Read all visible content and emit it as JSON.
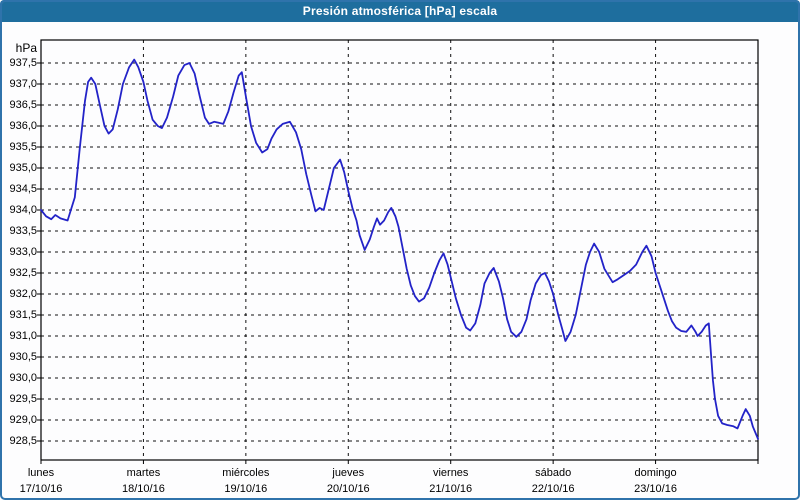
{
  "window": {
    "title": "Presión atmosférica [hPa] escala"
  },
  "colors": {
    "titlebar": "#1e6e9e",
    "panel_border": "#2f73ab",
    "line": "#2323c8",
    "grid": "#111111",
    "axis": "#000000",
    "text": "#000000",
    "plot_background": "#ffffff"
  },
  "chart_data": {
    "type": "line",
    "title": "Presión atmosférica [hPa] escala",
    "y_unit_label": "hPa",
    "xlabel": "",
    "ylabel": "hPa",
    "ylim": [
      928.5,
      937.5
    ],
    "y_tick_step": 0.5,
    "grid": true,
    "legend": false,
    "y_ticks": [
      "937,5",
      "937,0",
      "936,5",
      "936,0",
      "935,5",
      "935,0",
      "934,5",
      "934,0",
      "933,5",
      "933,0",
      "932,5",
      "932,0",
      "931,5",
      "931,0",
      "930,5",
      "930,0",
      "929,5",
      "929,0",
      "928,5"
    ],
    "y_tick_values": [
      937.5,
      937.0,
      936.5,
      936.0,
      935.5,
      935.0,
      934.5,
      934.0,
      933.5,
      933.0,
      932.5,
      932.0,
      931.5,
      931.0,
      930.5,
      930.0,
      929.5,
      929.0,
      928.5
    ],
    "x_days": [
      {
        "name": "lunes",
        "date": "17/10/16"
      },
      {
        "name": "martes",
        "date": "18/10/16"
      },
      {
        "name": "miércoles",
        "date": "19/10/16"
      },
      {
        "name": "jueves",
        "date": "20/10/16"
      },
      {
        "name": "viernes",
        "date": "21/10/16"
      },
      {
        "name": "sábado",
        "date": "22/10/16"
      },
      {
        "name": "domingo",
        "date": "23/10/16"
      }
    ],
    "x_unit": "days_from_monday_00h",
    "series": [
      {
        "name": "Presión atmosférica",
        "color": "#2323c8",
        "points": [
          [
            0.0,
            934.0
          ],
          [
            0.05,
            933.85
          ],
          [
            0.1,
            933.78
          ],
          [
            0.14,
            933.88
          ],
          [
            0.19,
            933.8
          ],
          [
            0.26,
            933.75
          ],
          [
            0.33,
            934.3
          ],
          [
            0.38,
            935.5
          ],
          [
            0.43,
            936.6
          ],
          [
            0.46,
            937.05
          ],
          [
            0.49,
            937.15
          ],
          [
            0.53,
            937.0
          ],
          [
            0.57,
            936.55
          ],
          [
            0.62,
            936.0
          ],
          [
            0.66,
            935.82
          ],
          [
            0.7,
            935.92
          ],
          [
            0.75,
            936.4
          ],
          [
            0.8,
            937.0
          ],
          [
            0.86,
            937.4
          ],
          [
            0.91,
            937.58
          ],
          [
            0.95,
            937.4
          ],
          [
            1.0,
            937.05
          ],
          [
            1.04,
            936.6
          ],
          [
            1.09,
            936.15
          ],
          [
            1.14,
            936.0
          ],
          [
            1.18,
            935.95
          ],
          [
            1.23,
            936.2
          ],
          [
            1.29,
            936.7
          ],
          [
            1.34,
            937.2
          ],
          [
            1.4,
            937.45
          ],
          [
            1.45,
            937.5
          ],
          [
            1.5,
            937.25
          ],
          [
            1.55,
            936.7
          ],
          [
            1.6,
            936.2
          ],
          [
            1.64,
            936.05
          ],
          [
            1.69,
            936.1
          ],
          [
            1.73,
            936.08
          ],
          [
            1.78,
            936.05
          ],
          [
            1.83,
            936.35
          ],
          [
            1.88,
            936.8
          ],
          [
            1.93,
            937.2
          ],
          [
            1.96,
            937.28
          ],
          [
            2.0,
            936.7
          ],
          [
            2.05,
            936.0
          ],
          [
            2.1,
            935.6
          ],
          [
            2.16,
            935.37
          ],
          [
            2.21,
            935.45
          ],
          [
            2.25,
            935.7
          ],
          [
            2.3,
            935.92
          ],
          [
            2.36,
            936.05
          ],
          [
            2.43,
            936.1
          ],
          [
            2.49,
            935.85
          ],
          [
            2.54,
            935.45
          ],
          [
            2.59,
            934.85
          ],
          [
            2.64,
            934.35
          ],
          [
            2.68,
            933.97
          ],
          [
            2.72,
            934.05
          ],
          [
            2.76,
            934.0
          ],
          [
            2.81,
            934.5
          ],
          [
            2.86,
            935.0
          ],
          [
            2.92,
            935.2
          ],
          [
            2.96,
            934.9
          ],
          [
            3.0,
            934.45
          ],
          [
            3.04,
            934.05
          ],
          [
            3.08,
            933.75
          ],
          [
            3.11,
            933.4
          ],
          [
            3.16,
            933.05
          ],
          [
            3.21,
            933.3
          ],
          [
            3.25,
            933.6
          ],
          [
            3.28,
            933.8
          ],
          [
            3.31,
            933.65
          ],
          [
            3.35,
            933.75
          ],
          [
            3.39,
            933.95
          ],
          [
            3.42,
            934.05
          ],
          [
            3.46,
            933.85
          ],
          [
            3.49,
            933.6
          ],
          [
            3.53,
            933.1
          ],
          [
            3.57,
            932.6
          ],
          [
            3.61,
            932.2
          ],
          [
            3.65,
            931.95
          ],
          [
            3.69,
            931.82
          ],
          [
            3.74,
            931.9
          ],
          [
            3.79,
            932.15
          ],
          [
            3.84,
            932.5
          ],
          [
            3.89,
            932.8
          ],
          [
            3.93,
            932.97
          ],
          [
            3.97,
            932.7
          ],
          [
            4.0,
            932.4
          ],
          [
            4.05,
            931.9
          ],
          [
            4.1,
            931.5
          ],
          [
            4.15,
            931.2
          ],
          [
            4.19,
            931.13
          ],
          [
            4.24,
            931.3
          ],
          [
            4.29,
            931.75
          ],
          [
            4.33,
            932.25
          ],
          [
            4.38,
            932.5
          ],
          [
            4.42,
            932.62
          ],
          [
            4.47,
            932.3
          ],
          [
            4.51,
            931.9
          ],
          [
            4.55,
            931.4
          ],
          [
            4.59,
            931.1
          ],
          [
            4.64,
            930.98
          ],
          [
            4.69,
            931.1
          ],
          [
            4.74,
            931.4
          ],
          [
            4.78,
            931.85
          ],
          [
            4.83,
            932.25
          ],
          [
            4.88,
            932.45
          ],
          [
            4.92,
            932.5
          ],
          [
            4.96,
            932.3
          ],
          [
            5.0,
            932.0
          ],
          [
            5.05,
            931.5
          ],
          [
            5.09,
            931.15
          ],
          [
            5.12,
            930.88
          ],
          [
            5.17,
            931.1
          ],
          [
            5.22,
            931.5
          ],
          [
            5.27,
            932.1
          ],
          [
            5.32,
            932.7
          ],
          [
            5.36,
            933.0
          ],
          [
            5.4,
            933.2
          ],
          [
            5.45,
            933.0
          ],
          [
            5.5,
            932.6
          ],
          [
            5.55,
            932.4
          ],
          [
            5.58,
            932.28
          ],
          [
            5.63,
            932.35
          ],
          [
            5.69,
            932.45
          ],
          [
            5.75,
            932.55
          ],
          [
            5.81,
            932.7
          ],
          [
            5.87,
            933.0
          ],
          [
            5.91,
            933.15
          ],
          [
            5.96,
            932.9
          ],
          [
            6.0,
            932.5
          ],
          [
            6.04,
            932.2
          ],
          [
            6.08,
            931.9
          ],
          [
            6.12,
            931.6
          ],
          [
            6.16,
            931.35
          ],
          [
            6.2,
            931.2
          ],
          [
            6.25,
            931.12
          ],
          [
            6.3,
            931.1
          ],
          [
            6.35,
            931.25
          ],
          [
            6.39,
            931.1
          ],
          [
            6.41,
            931.0
          ],
          [
            6.45,
            931.1
          ],
          [
            6.49,
            931.25
          ],
          [
            6.52,
            931.3
          ],
          [
            6.54,
            930.6
          ],
          [
            6.56,
            929.95
          ],
          [
            6.58,
            929.5
          ],
          [
            6.61,
            929.1
          ],
          [
            6.65,
            928.92
          ],
          [
            6.7,
            928.88
          ],
          [
            6.76,
            928.85
          ],
          [
            6.8,
            928.8
          ],
          [
            6.85,
            929.1
          ],
          [
            6.88,
            929.26
          ],
          [
            6.92,
            929.1
          ],
          [
            6.95,
            928.84
          ],
          [
            7.0,
            928.55
          ]
        ]
      }
    ]
  }
}
